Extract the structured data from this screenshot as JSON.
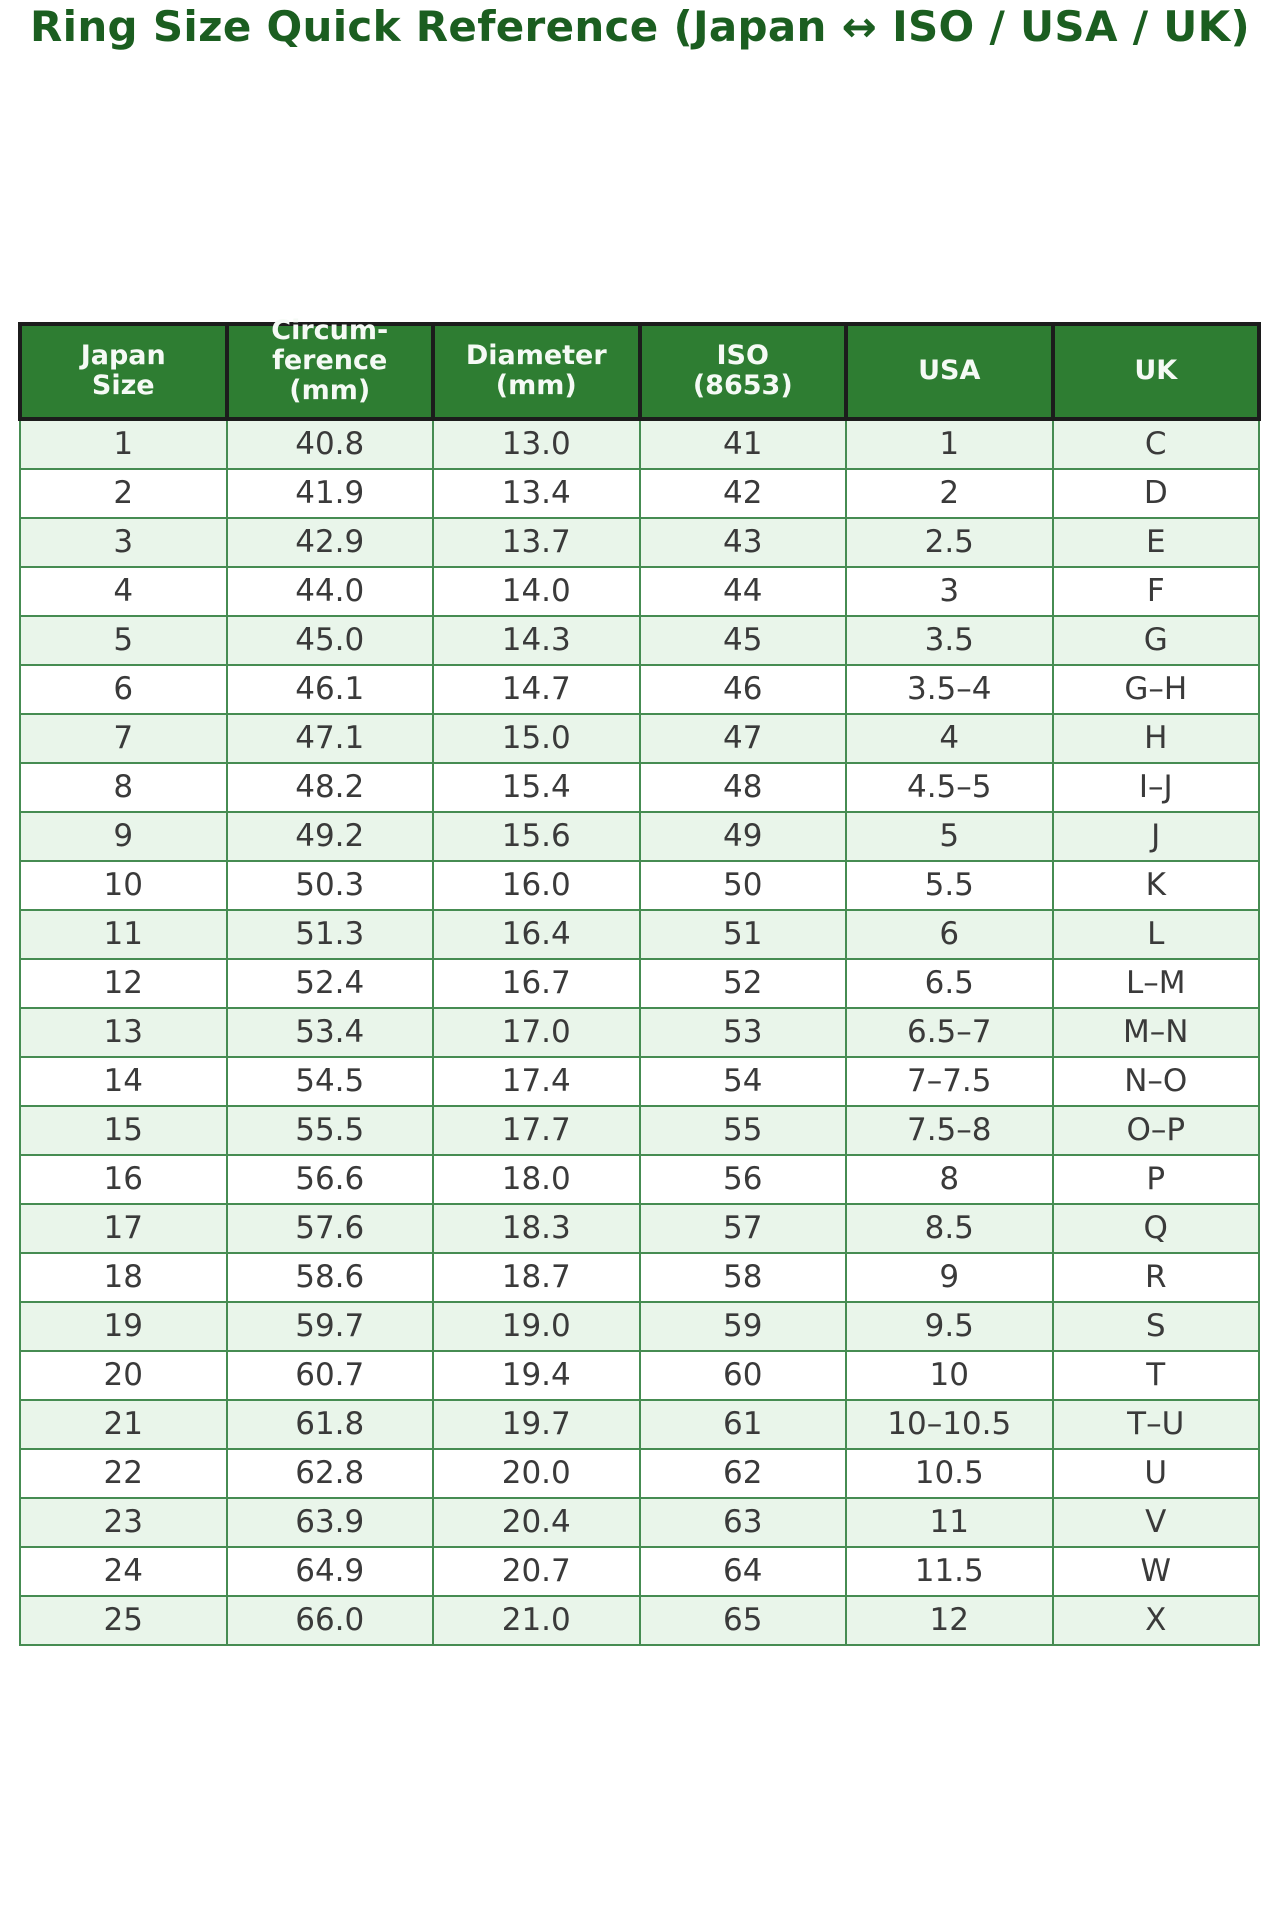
{
  "title": "Ring Size Quick Reference (Japan ↔ ISO / USA / UK)",
  "colors": {
    "title_text": "#1b5e20",
    "header_bg": "#2e7d32",
    "header_text": "#f5faf5",
    "header_border": "#1c1c1c",
    "row_alt_bg": "#e9f5ea",
    "row_bg": "#ffffff",
    "cell_border": "#468c52",
    "cell_text": "#3a3a3a",
    "page_bg": "#ffffff"
  },
  "chart_data": {
    "type": "table",
    "title": "Ring Size Quick Reference (Japan ↔ ISO / USA / UK)",
    "legend_position": "none",
    "grid": "all-cell-borders",
    "columns": [
      {
        "key": "japan-size",
        "label": "Japan\nSize"
      },
      {
        "key": "circumference-mm",
        "label": "Circum-\nference\n(mm)"
      },
      {
        "key": "diameter-mm",
        "label": "Diameter\n(mm)"
      },
      {
        "key": "iso-8653",
        "label": "ISO\n(8653)"
      },
      {
        "key": "usa",
        "label": "USA"
      },
      {
        "key": "uk",
        "label": "UK"
      }
    ],
    "rows": [
      [
        "1",
        "40.8",
        "13.0",
        "41",
        "1",
        "C"
      ],
      [
        "2",
        "41.9",
        "13.4",
        "42",
        "2",
        "D"
      ],
      [
        "3",
        "42.9",
        "13.7",
        "43",
        "2.5",
        "E"
      ],
      [
        "4",
        "44.0",
        "14.0",
        "44",
        "3",
        "F"
      ],
      [
        "5",
        "45.0",
        "14.3",
        "45",
        "3.5",
        "G"
      ],
      [
        "6",
        "46.1",
        "14.7",
        "46",
        "3.5–4",
        "G–H"
      ],
      [
        "7",
        "47.1",
        "15.0",
        "47",
        "4",
        "H"
      ],
      [
        "8",
        "48.2",
        "15.4",
        "48",
        "4.5–5",
        "I–J"
      ],
      [
        "9",
        "49.2",
        "15.6",
        "49",
        "5",
        "J"
      ],
      [
        "10",
        "50.3",
        "16.0",
        "50",
        "5.5",
        "K"
      ],
      [
        "11",
        "51.3",
        "16.4",
        "51",
        "6",
        "L"
      ],
      [
        "12",
        "52.4",
        "16.7",
        "52",
        "6.5",
        "L–M"
      ],
      [
        "13",
        "53.4",
        "17.0",
        "53",
        "6.5–7",
        "M–N"
      ],
      [
        "14",
        "54.5",
        "17.4",
        "54",
        "7–7.5",
        "N–O"
      ],
      [
        "15",
        "55.5",
        "17.7",
        "55",
        "7.5–8",
        "O–P"
      ],
      [
        "16",
        "56.6",
        "18.0",
        "56",
        "8",
        "P"
      ],
      [
        "17",
        "57.6",
        "18.3",
        "57",
        "8.5",
        "Q"
      ],
      [
        "18",
        "58.6",
        "18.7",
        "58",
        "9",
        "R"
      ],
      [
        "19",
        "59.7",
        "19.0",
        "59",
        "9.5",
        "S"
      ],
      [
        "20",
        "60.7",
        "19.4",
        "60",
        "10",
        "T"
      ],
      [
        "21",
        "61.8",
        "19.7",
        "61",
        "10–10.5",
        "T–U"
      ],
      [
        "22",
        "62.8",
        "20.0",
        "62",
        "10.5",
        "U"
      ],
      [
        "23",
        "63.9",
        "20.4",
        "63",
        "11",
        "V"
      ],
      [
        "24",
        "64.9",
        "20.7",
        "64",
        "11.5",
        "W"
      ],
      [
        "25",
        "66.0",
        "21.0",
        "65",
        "12",
        "X"
      ]
    ]
  }
}
